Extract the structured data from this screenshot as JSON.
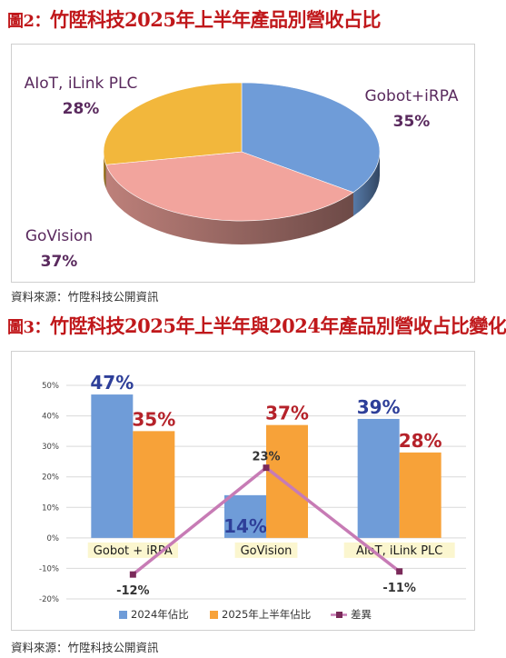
{
  "figure2": {
    "title_prefix": "圖2：",
    "title": "竹陞科技2025年上半年產品別營收占比",
    "source": "資料來源：竹陞科技公開資訊",
    "chart_data": {
      "type": "pie",
      "title": "竹陞科技2025年上半年產品別營收占比",
      "categories": [
        "Gobot+iRPA",
        "GoVision",
        "AIoT, iLink PLC"
      ],
      "values": [
        35,
        37,
        28
      ],
      "data_labels": [
        "35%",
        "37%",
        "28%"
      ],
      "colors": [
        "#6f9cd8",
        "#f2a49d",
        "#f2b73c"
      ]
    }
  },
  "figure3": {
    "title_prefix": "圖3：",
    "title": "竹陞科技2025年上半年與2024年產品別營收占比變化",
    "source": "資料來源：竹陞科技公開資訊",
    "chart_data": {
      "type": "bar",
      "title": "竹陞科技2025年上半年與2024年產品別營收占比變化",
      "categories": [
        "Gobot + iRPA",
        "GoVision",
        "AIoT, iLink PLC"
      ],
      "ylim": [
        -20,
        50
      ],
      "yticks": [
        "50%",
        "40%",
        "30%",
        "20%",
        "10%",
        "0%",
        "-10%",
        "-20%"
      ],
      "ytick_values": [
        50,
        40,
        30,
        20,
        10,
        0,
        -10,
        -20
      ],
      "grid": true,
      "legend_position": "bottom",
      "series": [
        {
          "name": "2024年佔比",
          "kind": "bar",
          "values": [
            47,
            14,
            39
          ],
          "labels": [
            "47%",
            "14%",
            "39%"
          ],
          "color": "#6f9cd8",
          "label_color": "#2e3f99"
        },
        {
          "name": "2025年上半年佔比",
          "kind": "bar",
          "values": [
            35,
            37,
            28
          ],
          "labels": [
            "35%",
            "37%",
            "28%"
          ],
          "color": "#f7a239",
          "label_color": "#b5222a"
        },
        {
          "name": "差異",
          "kind": "line",
          "values": [
            -12,
            23,
            -11
          ],
          "labels": [
            "-12%",
            "23%",
            "-11%"
          ],
          "color": "#c77bb5",
          "marker_color": "#7a2a5a"
        }
      ]
    }
  }
}
